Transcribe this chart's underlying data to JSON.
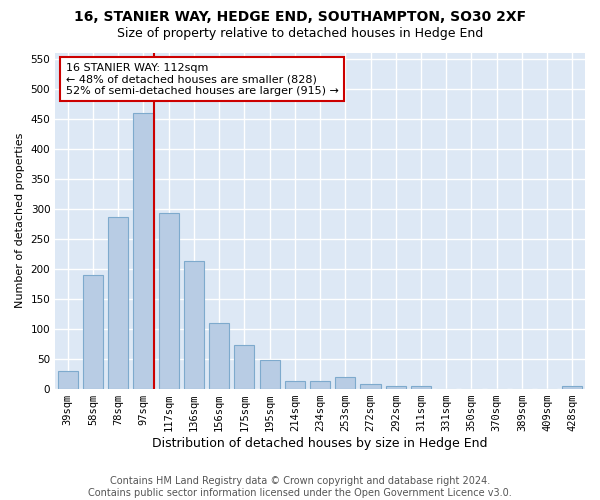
{
  "title1": "16, STANIER WAY, HEDGE END, SOUTHAMPTON, SO30 2XF",
  "title2": "Size of property relative to detached houses in Hedge End",
  "xlabel": "Distribution of detached houses by size in Hedge End",
  "ylabel": "Number of detached properties",
  "categories": [
    "39sqm",
    "58sqm",
    "78sqm",
    "97sqm",
    "117sqm",
    "136sqm",
    "156sqm",
    "175sqm",
    "195sqm",
    "214sqm",
    "234sqm",
    "253sqm",
    "272sqm",
    "292sqm",
    "311sqm",
    "331sqm",
    "350sqm",
    "370sqm",
    "389sqm",
    "409sqm",
    "428sqm"
  ],
  "values": [
    30,
    190,
    287,
    460,
    293,
    213,
    110,
    74,
    48,
    13,
    13,
    20,
    8,
    5,
    5,
    0,
    0,
    0,
    0,
    0,
    5
  ],
  "bar_color": "#b8cce4",
  "bar_edgecolor": "#7eaacd",
  "marker_color": "#cc0000",
  "annotation_title": "16 STANIER WAY: 112sqm",
  "annotation_line1": "← 48% of detached houses are smaller (828)",
  "annotation_line2": "52% of semi-detached houses are larger (915) →",
  "annotation_box_edgecolor": "#cc0000",
  "ylim": [
    0,
    560
  ],
  "yticks": [
    0,
    50,
    100,
    150,
    200,
    250,
    300,
    350,
    400,
    450,
    500,
    550
  ],
  "background_color": "#dde8f5",
  "grid_color": "#ffffff",
  "footer1": "Contains HM Land Registry data © Crown copyright and database right 2024.",
  "footer2": "Contains public sector information licensed under the Open Government Licence v3.0.",
  "title1_fontsize": 10,
  "title2_fontsize": 9,
  "xlabel_fontsize": 9,
  "ylabel_fontsize": 8,
  "tick_fontsize": 7.5,
  "annotation_fontsize": 8,
  "footer_fontsize": 7
}
